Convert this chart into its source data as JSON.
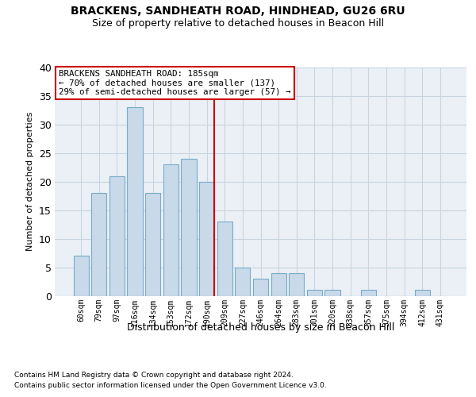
{
  "title1": "BRACKENS, SANDHEATH ROAD, HINDHEAD, GU26 6RU",
  "title2": "Size of property relative to detached houses in Beacon Hill",
  "xlabel": "Distribution of detached houses by size in Beacon Hill",
  "ylabel": "Number of detached properties",
  "categories": [
    "60sqm",
    "79sqm",
    "97sqm",
    "116sqm",
    "134sqm",
    "153sqm",
    "172sqm",
    "190sqm",
    "209sqm",
    "227sqm",
    "246sqm",
    "264sqm",
    "283sqm",
    "301sqm",
    "320sqm",
    "338sqm",
    "357sqm",
    "375sqm",
    "394sqm",
    "412sqm",
    "431sqm"
  ],
  "values": [
    7,
    18,
    21,
    33,
    18,
    23,
    24,
    20,
    13,
    5,
    3,
    4,
    4,
    1,
    1,
    0,
    1,
    0,
    0,
    1,
    0
  ],
  "bar_color": "#c8d9ea",
  "bar_edge_color": "#7aaac8",
  "grid_color": "#c8d4e0",
  "bg_color": "#eaf0f6",
  "annotation_text": "BRACKENS SANDHEATH ROAD: 185sqm\n← 70% of detached houses are smaller (137)\n29% of semi-detached houses are larger (57) →",
  "vline_x_index": 7,
  "vline_color": "#cc0000",
  "annotation_box_color": "#ffffff",
  "annotation_box_edge": "#cc0000",
  "footer1": "Contains HM Land Registry data © Crown copyright and database right 2024.",
  "footer2": "Contains public sector information licensed under the Open Government Licence v3.0.",
  "ylim": [
    0,
    40
  ],
  "yticks": [
    0,
    5,
    10,
    15,
    20,
    25,
    30,
    35,
    40
  ]
}
